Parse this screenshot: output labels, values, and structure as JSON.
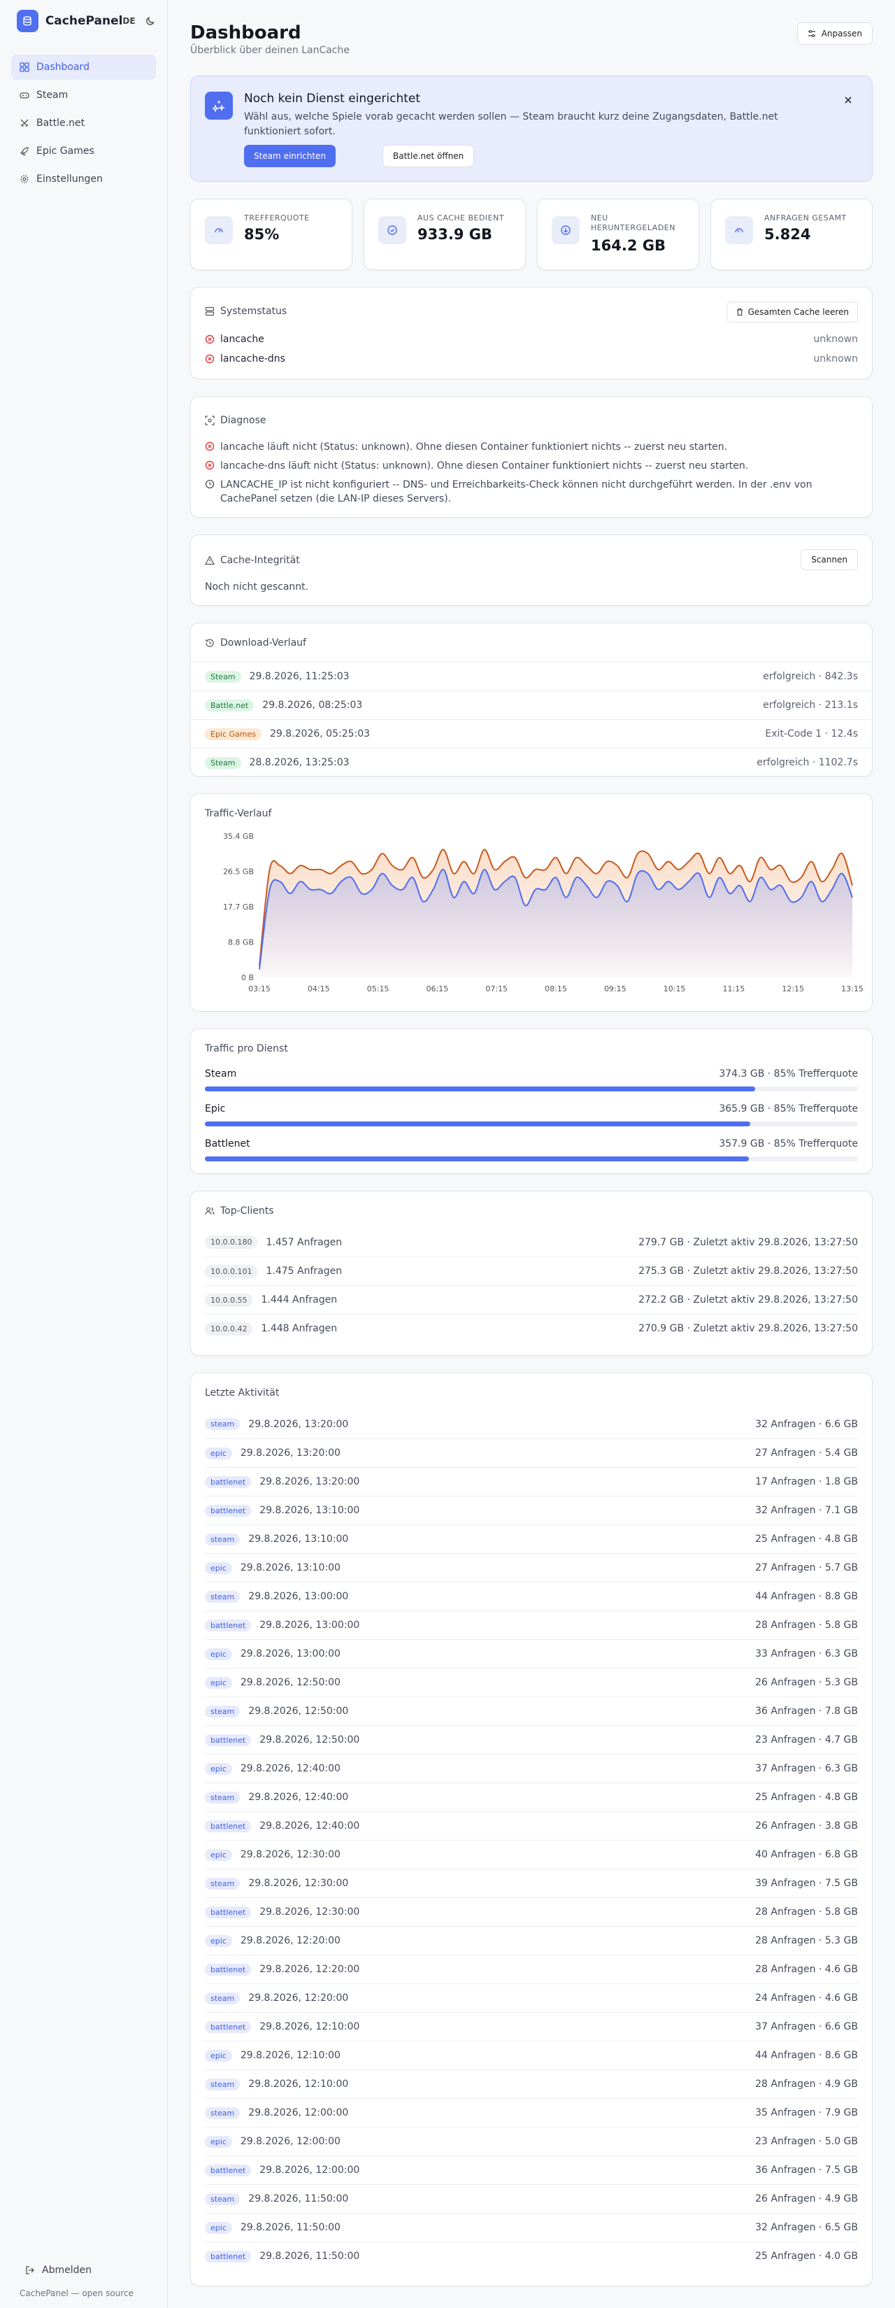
{
  "app": {
    "name": "CachePanel",
    "lang": "DE"
  },
  "sidebar": {
    "items": [
      {
        "label": "Dashboard",
        "icon": "dashboard-icon"
      },
      {
        "label": "Steam",
        "icon": "gamepad-icon"
      },
      {
        "label": "Battle.net",
        "icon": "swords-icon"
      },
      {
        "label": "Epic Games",
        "icon": "rocket-icon"
      },
      {
        "label": "Einstellungen",
        "icon": "gear-icon"
      }
    ],
    "logout": "Abmelden",
    "footer": "CachePanel — open source"
  },
  "header": {
    "title": "Dashboard",
    "subtitle": "Überblick über deinen LanCache",
    "customize": "Anpassen"
  },
  "banner": {
    "title": "Noch kein Dienst eingerichtet",
    "text": "Wähl aus, welche Spiele vorab gecacht werden sollen — Steam braucht kurz deine Zugangsdaten, Battle.net funktioniert sofort.",
    "primary": "Steam einrichten",
    "secondary": "Battle.net öffnen"
  },
  "kpis": [
    {
      "label": "TREFFERQUOTE",
      "value": "85%"
    },
    {
      "label": "AUS CACHE BEDIENT",
      "value": "933.9 GB"
    },
    {
      "label": "NEU HERUNTERGELADEN",
      "value": "164.2 GB"
    },
    {
      "label": "ANFRAGEN GESAMT",
      "value": "5.824"
    }
  ],
  "system": {
    "title": "Systemstatus",
    "clear": "Gesamten Cache leeren",
    "rows": [
      {
        "name": "lancache",
        "status": "unknown"
      },
      {
        "name": "lancache-dns",
        "status": "unknown"
      }
    ]
  },
  "diagnose": {
    "title": "Diagnose",
    "rows": [
      "lancache läuft nicht (Status: unknown). Ohne diesen Container funktioniert nichts -- zuerst neu starten.",
      "lancache-dns läuft nicht (Status: unknown). Ohne diesen Container funktioniert nichts -- zuerst neu starten.",
      "LANCACHE_IP ist nicht konfiguriert -- DNS- und Erreichbarkeits-Check können nicht durchgeführt werden. In der .env von CachePanel setzen (die LAN-IP dieses Servers)."
    ]
  },
  "integrity": {
    "title": "Cache-Integrität",
    "scan": "Scannen",
    "text": "Noch nicht gescannt."
  },
  "history": {
    "title": "Download-Verlauf",
    "rows": [
      {
        "tag": "Steam",
        "time": "29.8.2026, 11:25:03",
        "result": "erfolgreich · 842.3s"
      },
      {
        "tag": "Battle.net",
        "time": "29.8.2026, 08:25:03",
        "result": "erfolgreich · 213.1s"
      },
      {
        "tag": "Epic Games",
        "time": "29.8.2026, 05:25:03",
        "result": "Exit-Code 1 · 12.4s"
      },
      {
        "tag": "Steam",
        "time": "28.8.2026, 13:25:03",
        "result": "erfolgreich · 1102.7s"
      }
    ]
  },
  "chart_data": {
    "type": "area",
    "title": "Traffic-Verlauf",
    "y_ticks": [
      "0 B",
      "8.8 GB",
      "17.7 GB",
      "26.5 GB",
      "35.4 GB"
    ],
    "ylim": [
      0,
      35.4
    ],
    "x_ticks": [
      "03:15",
      "04:15",
      "05:15",
      "06:15",
      "07:15",
      "08:15",
      "09:15",
      "10:15",
      "11:15",
      "12:15",
      "13:15"
    ],
    "series": [
      {
        "color": "#c85a1e",
        "values": [
          3,
          27,
          28,
          26,
          28,
          27,
          27,
          26,
          28,
          29,
          26,
          27,
          31,
          28,
          27,
          30,
          25,
          27,
          32,
          26,
          29,
          26,
          32,
          27,
          29,
          30,
          25,
          27,
          27,
          30,
          26,
          30,
          28,
          26,
          29,
          28,
          25,
          31,
          31,
          27,
          29,
          27,
          29,
          31,
          26,
          30,
          26,
          28,
          24,
          30,
          27,
          28,
          24,
          25,
          29,
          24,
          27,
          31,
          23
        ]
      },
      {
        "color": "#4f6ef0",
        "values": [
          2,
          22,
          24,
          21,
          24,
          22,
          22,
          21,
          24,
          25,
          21,
          22,
          26,
          23,
          22,
          25,
          19,
          22,
          27,
          20,
          24,
          21,
          27,
          22,
          24,
          25,
          18,
          22,
          22,
          25,
          20,
          25,
          23,
          20,
          24,
          23,
          19,
          26,
          26,
          22,
          24,
          22,
          24,
          26,
          20,
          25,
          21,
          23,
          19,
          25,
          22,
          23,
          19,
          20,
          24,
          19,
          22,
          26,
          20
        ]
      }
    ]
  },
  "services": {
    "title": "Traffic pro Dienst",
    "rows": [
      {
        "name": "Steam",
        "meta": "374.3 GB · 85% Trefferquote",
        "share": 0.843
      },
      {
        "name": "Epic",
        "meta": "365.9 GB · 85% Trefferquote",
        "share": 0.835
      },
      {
        "name": "Battlenet",
        "meta": "357.9 GB · 85% Trefferquote",
        "share": 0.833
      }
    ]
  },
  "clients": {
    "title": "Top-Clients",
    "rows": [
      {
        "ip": "10.0.0.180",
        "req": "1.457 Anfragen",
        "info": "279.7 GB · Zuletzt aktiv 29.8.2026, 13:27:50"
      },
      {
        "ip": "10.0.0.101",
        "req": "1.475 Anfragen",
        "info": "275.3 GB · Zuletzt aktiv 29.8.2026, 13:27:50"
      },
      {
        "ip": "10.0.0.55",
        "req": "1.444 Anfragen",
        "info": "272.2 GB · Zuletzt aktiv 29.8.2026, 13:27:50"
      },
      {
        "ip": "10.0.0.42",
        "req": "1.448 Anfragen",
        "info": "270.9 GB · Zuletzt aktiv 29.8.2026, 13:27:50"
      }
    ]
  },
  "activity": {
    "title": "Letzte Aktivität",
    "rows": [
      {
        "tag": "steam",
        "time": "29.8.2026, 13:20:00",
        "info": "32 Anfragen · 6.6 GB"
      },
      {
        "tag": "epic",
        "time": "29.8.2026, 13:20:00",
        "info": "27 Anfragen · 5.4 GB"
      },
      {
        "tag": "battlenet",
        "time": "29.8.2026, 13:20:00",
        "info": "17 Anfragen · 1.8 GB"
      },
      {
        "tag": "battlenet",
        "time": "29.8.2026, 13:10:00",
        "info": "32 Anfragen · 7.1 GB"
      },
      {
        "tag": "steam",
        "time": "29.8.2026, 13:10:00",
        "info": "25 Anfragen · 4.8 GB"
      },
      {
        "tag": "epic",
        "time": "29.8.2026, 13:10:00",
        "info": "27 Anfragen · 5.7 GB"
      },
      {
        "tag": "steam",
        "time": "29.8.2026, 13:00:00",
        "info": "44 Anfragen · 8.8 GB"
      },
      {
        "tag": "battlenet",
        "time": "29.8.2026, 13:00:00",
        "info": "28 Anfragen · 5.8 GB"
      },
      {
        "tag": "epic",
        "time": "29.8.2026, 13:00:00",
        "info": "33 Anfragen · 6.3 GB"
      },
      {
        "tag": "epic",
        "time": "29.8.2026, 12:50:00",
        "info": "26 Anfragen · 5.3 GB"
      },
      {
        "tag": "steam",
        "time": "29.8.2026, 12:50:00",
        "info": "36 Anfragen · 7.8 GB"
      },
      {
        "tag": "battlenet",
        "time": "29.8.2026, 12:50:00",
        "info": "23 Anfragen · 4.7 GB"
      },
      {
        "tag": "epic",
        "time": "29.8.2026, 12:40:00",
        "info": "37 Anfragen · 6.3 GB"
      },
      {
        "tag": "steam",
        "time": "29.8.2026, 12:40:00",
        "info": "25 Anfragen · 4.8 GB"
      },
      {
        "tag": "battlenet",
        "time": "29.8.2026, 12:40:00",
        "info": "26 Anfragen · 3.8 GB"
      },
      {
        "tag": "epic",
        "time": "29.8.2026, 12:30:00",
        "info": "40 Anfragen · 6.8 GB"
      },
      {
        "tag": "steam",
        "time": "29.8.2026, 12:30:00",
        "info": "39 Anfragen · 7.5 GB"
      },
      {
        "tag": "battlenet",
        "time": "29.8.2026, 12:30:00",
        "info": "28 Anfragen · 5.8 GB"
      },
      {
        "tag": "epic",
        "time": "29.8.2026, 12:20:00",
        "info": "28 Anfragen · 5.3 GB"
      },
      {
        "tag": "battlenet",
        "time": "29.8.2026, 12:20:00",
        "info": "28 Anfragen · 4.6 GB"
      },
      {
        "tag": "steam",
        "time": "29.8.2026, 12:20:00",
        "info": "24 Anfragen · 4.6 GB"
      },
      {
        "tag": "battlenet",
        "time": "29.8.2026, 12:10:00",
        "info": "37 Anfragen · 6.6 GB"
      },
      {
        "tag": "epic",
        "time": "29.8.2026, 12:10:00",
        "info": "44 Anfragen · 8.6 GB"
      },
      {
        "tag": "steam",
        "time": "29.8.2026, 12:10:00",
        "info": "28 Anfragen · 4.9 GB"
      },
      {
        "tag": "steam",
        "time": "29.8.2026, 12:00:00",
        "info": "35 Anfragen · 7.9 GB"
      },
      {
        "tag": "epic",
        "time": "29.8.2026, 12:00:00",
        "info": "23 Anfragen · 5.0 GB"
      },
      {
        "tag": "battlenet",
        "time": "29.8.2026, 12:00:00",
        "info": "36 Anfragen · 7.5 GB"
      },
      {
        "tag": "steam",
        "time": "29.8.2026, 11:50:00",
        "info": "26 Anfragen · 4.9 GB"
      },
      {
        "tag": "epic",
        "time": "29.8.2026, 11:50:00",
        "info": "32 Anfragen · 6.5 GB"
      },
      {
        "tag": "battlenet",
        "time": "29.8.2026, 11:50:00",
        "info": "25 Anfragen · 4.0 GB"
      }
    ]
  }
}
